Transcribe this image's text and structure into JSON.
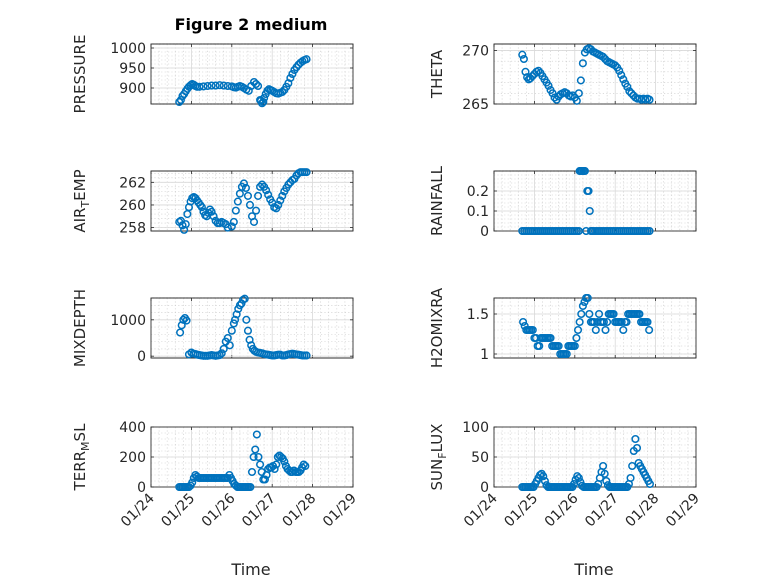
{
  "title": "Figure 2 medium",
  "xlabel": "Time",
  "colors": {
    "marker": "#0072bd",
    "axis": "#262626",
    "grid": "#d9d9d9"
  },
  "chart_data": [
    {
      "type": "scatter",
      "ylabel": "PRESSURE",
      "ylim": [
        860,
        1010
      ],
      "yticks": [
        900,
        950,
        1000
      ],
      "ytick_labels": [
        "900",
        "950",
        "1000"
      ],
      "x": [
        0.7,
        0.74,
        0.78,
        0.82,
        0.86,
        0.9,
        0.94,
        0.98,
        1.02,
        1.06,
        1.1,
        1.14,
        1.2,
        1.3,
        1.4,
        1.5,
        1.6,
        1.7,
        1.8,
        1.9,
        2.0,
        2.05,
        2.1,
        2.15,
        2.2,
        2.25,
        2.3,
        2.36,
        2.42,
        2.48,
        2.55,
        2.6,
        2.65,
        2.7,
        2.72,
        2.75,
        2.78,
        2.8,
        2.84,
        2.88,
        2.92,
        2.96,
        3.0,
        3.05,
        3.1,
        3.15,
        3.2,
        3.25,
        3.3,
        3.35,
        3.4,
        3.45,
        3.5,
        3.55,
        3.6,
        3.65,
        3.7,
        3.75,
        3.8,
        3.85
      ],
      "y": [
        865,
        870,
        880,
        885,
        892,
        898,
        903,
        907,
        910,
        908,
        905,
        903,
        903,
        904,
        905,
        906,
        906,
        907,
        906,
        905,
        904,
        902,
        901,
        903,
        905,
        903,
        900,
        896,
        893,
        905,
        915,
        910,
        905,
        870,
        868,
        862,
        865,
        875,
        885,
        893,
        897,
        895,
        893,
        890,
        887,
        886,
        888,
        890,
        895,
        903,
        912,
        925,
        935,
        945,
        952,
        958,
        963,
        967,
        970,
        972
      ]
    },
    {
      "type": "scatter",
      "ylabel": "THETA",
      "ylim": [
        265,
        270.6
      ],
      "yticks": [
        265,
        270
      ],
      "ytick_labels": [
        "265",
        "270"
      ],
      "x": [
        0.7,
        0.74,
        0.78,
        0.82,
        0.86,
        0.9,
        0.95,
        1.0,
        1.05,
        1.1,
        1.15,
        1.2,
        1.25,
        1.3,
        1.35,
        1.4,
        1.45,
        1.5,
        1.55,
        1.6,
        1.65,
        1.7,
        1.75,
        1.8,
        1.85,
        1.9,
        1.95,
        2.0,
        2.05,
        2.1,
        2.15,
        2.2,
        2.25,
        2.3,
        2.35,
        2.4,
        2.45,
        2.5,
        2.55,
        2.6,
        2.65,
        2.7,
        2.75,
        2.8,
        2.85,
        2.9,
        2.95,
        3.0,
        3.05,
        3.1,
        3.15,
        3.2,
        3.25,
        3.3,
        3.35,
        3.4,
        3.45,
        3.5,
        3.55,
        3.6,
        3.65,
        3.7,
        3.75,
        3.8,
        3.85
      ],
      "y": [
        269.6,
        269.2,
        268.0,
        267.5,
        267.3,
        267.4,
        267.6,
        267.8,
        268.0,
        268.1,
        267.9,
        267.6,
        267.3,
        267.0,
        266.7,
        266.3,
        266.0,
        265.6,
        265.4,
        265.7,
        265.9,
        266.0,
        266.1,
        266.0,
        265.8,
        265.7,
        265.8,
        265.6,
        265.3,
        266.0,
        267.2,
        268.8,
        269.8,
        270.1,
        270.2,
        270.1,
        269.9,
        269.8,
        269.7,
        269.6,
        269.5,
        269.4,
        269.2,
        269.0,
        268.9,
        268.8,
        268.7,
        268.6,
        268.4,
        268.1,
        267.7,
        267.3,
        266.9,
        266.6,
        266.2,
        266.0,
        265.8,
        265.6,
        265.5,
        265.5,
        265.4,
        265.5,
        265.4,
        265.5,
        265.4
      ]
    },
    {
      "type": "scatter",
      "ylabel": "AIR_TEMP",
      "ylim": [
        257.7,
        263.0
      ],
      "yticks": [
        258,
        260,
        262
      ],
      "ytick_labels": [
        "258",
        "260",
        "262"
      ],
      "x": [
        0.7,
        0.74,
        0.78,
        0.82,
        0.86,
        0.9,
        0.94,
        0.98,
        1.02,
        1.06,
        1.1,
        1.14,
        1.18,
        1.22,
        1.26,
        1.3,
        1.34,
        1.38,
        1.42,
        1.46,
        1.5,
        1.55,
        1.6,
        1.65,
        1.7,
        1.75,
        1.8,
        1.85,
        1.9,
        2.0,
        2.05,
        2.1,
        2.15,
        2.2,
        2.25,
        2.3,
        2.35,
        2.4,
        2.45,
        2.5,
        2.55,
        2.6,
        2.65,
        2.7,
        2.75,
        2.8,
        2.85,
        2.9,
        2.95,
        3.0,
        3.05,
        3.1,
        3.15,
        3.2,
        3.25,
        3.3,
        3.35,
        3.4,
        3.45,
        3.5,
        3.55,
        3.6,
        3.65,
        3.7,
        3.75,
        3.8,
        3.85
      ],
      "y": [
        258.5,
        258.6,
        258.2,
        257.8,
        258.3,
        259.2,
        259.8,
        260.3,
        260.6,
        260.7,
        260.6,
        260.4,
        260.2,
        260.0,
        259.8,
        259.4,
        259.1,
        259.0,
        259.3,
        259.6,
        259.4,
        259.0,
        258.6,
        258.4,
        258.4,
        258.5,
        258.4,
        258.3,
        258.0,
        258.1,
        258.5,
        259.5,
        260.3,
        261.0,
        261.6,
        261.9,
        261.5,
        260.8,
        260.0,
        259.0,
        258.5,
        259.5,
        260.8,
        261.6,
        261.8,
        261.6,
        261.3,
        260.9,
        260.5,
        260.2,
        259.8,
        259.7,
        260.0,
        260.4,
        260.8,
        261.2,
        261.5,
        261.8,
        262.0,
        262.2,
        262.3,
        262.6,
        262.8,
        262.9,
        262.9,
        262.9,
        262.9
      ]
    },
    {
      "type": "scatter",
      "ylabel": "RAINFALL",
      "ylim": [
        0,
        0.3
      ],
      "yticks": [
        0,
        0.1,
        0.2
      ],
      "ytick_labels": [
        "0",
        "0.1",
        "0.2"
      ],
      "x": [
        0.7,
        0.75,
        0.8,
        0.85,
        0.9,
        0.95,
        1.0,
        1.05,
        1.1,
        1.15,
        1.2,
        1.25,
        1.3,
        1.35,
        1.4,
        1.45,
        1.5,
        1.55,
        1.6,
        1.65,
        1.7,
        1.75,
        1.8,
        1.85,
        1.9,
        1.95,
        2.0,
        2.05,
        2.1,
        2.12,
        2.15,
        2.18,
        2.22,
        2.25,
        2.28,
        2.31,
        2.34,
        2.37,
        2.4,
        2.42,
        2.45,
        2.5,
        2.55,
        2.6,
        2.65,
        2.7,
        2.75,
        2.8,
        2.85,
        2.9,
        2.95,
        3.0,
        3.05,
        3.1,
        3.15,
        3.2,
        3.25,
        3.3,
        3.35,
        3.4,
        3.45,
        3.5,
        3.55,
        3.6,
        3.65,
        3.7,
        3.75,
        3.8,
        3.85
      ],
      "y": [
        0,
        0,
        0,
        0,
        0,
        0,
        0,
        0,
        0,
        0,
        0,
        0,
        0,
        0,
        0,
        0,
        0,
        0,
        0,
        0,
        0,
        0,
        0,
        0,
        0,
        0,
        0,
        0,
        0,
        0.3,
        0.3,
        0.3,
        0.3,
        0.3,
        0,
        0.2,
        0.2,
        0.1,
        0,
        0,
        0,
        0,
        0,
        0,
        0,
        0,
        0,
        0,
        0,
        0,
        0,
        0,
        0,
        0,
        0,
        0,
        0,
        0,
        0,
        0,
        0,
        0,
        0,
        0,
        0,
        0,
        0,
        0,
        0
      ]
    },
    {
      "type": "scatter",
      "ylabel": "MIXDEPTH",
      "ylim": [
        -50,
        1600
      ],
      "yticks": [
        0,
        1000
      ],
      "ytick_labels": [
        "0",
        "1000"
      ],
      "x": [
        0.72,
        0.76,
        0.8,
        0.84,
        0.88,
        0.94,
        1.0,
        1.05,
        1.1,
        1.15,
        1.2,
        1.25,
        1.3,
        1.35,
        1.4,
        1.45,
        1.5,
        1.55,
        1.6,
        1.65,
        1.7,
        1.75,
        1.8,
        1.85,
        1.9,
        1.95,
        2.0,
        2.05,
        2.08,
        2.12,
        2.16,
        2.2,
        2.24,
        2.28,
        2.32,
        2.36,
        2.4,
        2.44,
        2.48,
        2.52,
        2.56,
        2.6,
        2.65,
        2.7,
        2.75,
        2.8,
        2.85,
        2.9,
        2.95,
        3.0,
        3.05,
        3.1,
        3.15,
        3.2,
        3.25,
        3.3,
        3.35,
        3.4,
        3.45,
        3.5,
        3.55,
        3.6,
        3.65,
        3.7,
        3.75,
        3.8,
        3.85
      ],
      "y": [
        650,
        850,
        1000,
        1050,
        980,
        50,
        100,
        70,
        60,
        40,
        30,
        20,
        10,
        10,
        10,
        20,
        30,
        20,
        10,
        20,
        30,
        80,
        200,
        400,
        500,
        300,
        700,
        900,
        1000,
        1150,
        1300,
        1400,
        1450,
        1550,
        1580,
        1000,
        700,
        450,
        300,
        200,
        150,
        120,
        100,
        90,
        80,
        60,
        50,
        40,
        30,
        20,
        20,
        30,
        40,
        40,
        20,
        20,
        30,
        50,
        60,
        70,
        60,
        50,
        40,
        30,
        20,
        20,
        20
      ]
    },
    {
      "type": "scatter",
      "ylabel": "H2OMIXRA",
      "ylim": [
        0.95,
        1.7
      ],
      "yticks": [
        1,
        1.5
      ],
      "ytick_labels": [
        "1",
        "1.5"
      ],
      "x": [
        0.72,
        0.76,
        0.8,
        0.84,
        0.88,
        0.92,
        0.96,
        1.0,
        1.04,
        1.08,
        1.12,
        1.16,
        1.2,
        1.24,
        1.28,
        1.32,
        1.36,
        1.4,
        1.44,
        1.48,
        1.52,
        1.56,
        1.6,
        1.64,
        1.68,
        1.72,
        1.76,
        1.8,
        1.84,
        1.88,
        1.92,
        1.96,
        2.0,
        2.04,
        2.08,
        2.12,
        2.16,
        2.2,
        2.24,
        2.28,
        2.32,
        2.36,
        2.4,
        2.44,
        2.48,
        2.52,
        2.56,
        2.6,
        2.64,
        2.68,
        2.72,
        2.76,
        2.8,
        2.84,
        2.88,
        2.92,
        2.96,
        3.0,
        3.04,
        3.08,
        3.12,
        3.16,
        3.2,
        3.24,
        3.28,
        3.32,
        3.36,
        3.4,
        3.44,
        3.48,
        3.52,
        3.56,
        3.6,
        3.64,
        3.68,
        3.72,
        3.76,
        3.8,
        3.84
      ],
      "y": [
        1.4,
        1.35,
        1.3,
        1.3,
        1.3,
        1.3,
        1.3,
        1.2,
        1.2,
        1.1,
        1.1,
        1.2,
        1.2,
        1.2,
        1.2,
        1.2,
        1.2,
        1.2,
        1.1,
        1.1,
        1.1,
        1.1,
        1.1,
        1.0,
        1.0,
        1.0,
        1.0,
        1.0,
        1.1,
        1.1,
        1.1,
        1.1,
        1.1,
        1.2,
        1.3,
        1.4,
        1.5,
        1.6,
        1.65,
        1.7,
        1.7,
        1.5,
        1.4,
        1.4,
        1.4,
        1.3,
        1.4,
        1.5,
        1.4,
        1.4,
        1.4,
        1.3,
        1.4,
        1.5,
        1.5,
        1.5,
        1.5,
        1.4,
        1.4,
        1.4,
        1.4,
        1.4,
        1.3,
        1.4,
        1.4,
        1.5,
        1.5,
        1.5,
        1.5,
        1.5,
        1.5,
        1.5,
        1.5,
        1.4,
        1.4,
        1.4,
        1.4,
        1.4,
        1.3
      ]
    },
    {
      "type": "scatter",
      "ylabel": "TERR_MSL",
      "ylim": [
        0,
        400
      ],
      "yticks": [
        0,
        200,
        400
      ],
      "ytick_labels": [
        "0",
        "200",
        "400"
      ],
      "x": [
        0.7,
        0.74,
        0.78,
        0.82,
        0.86,
        0.9,
        0.94,
        0.98,
        1.02,
        1.06,
        1.1,
        1.14,
        1.18,
        1.22,
        1.26,
        1.3,
        1.34,
        1.38,
        1.42,
        1.46,
        1.5,
        1.54,
        1.58,
        1.62,
        1.66,
        1.7,
        1.74,
        1.78,
        1.82,
        1.86,
        1.9,
        1.94,
        1.98,
        2.02,
        2.06,
        2.1,
        2.14,
        2.18,
        2.22,
        2.26,
        2.3,
        2.34,
        2.38,
        2.42,
        2.46,
        2.5,
        2.54,
        2.58,
        2.62,
        2.66,
        2.7,
        2.74,
        2.78,
        2.82,
        2.86,
        2.9,
        2.94,
        2.98,
        3.02,
        3.06,
        3.1,
        3.14,
        3.18,
        3.22,
        3.26,
        3.3,
        3.34,
        3.38,
        3.42,
        3.46,
        3.5,
        3.54,
        3.58,
        3.62,
        3.66,
        3.7,
        3.74,
        3.78,
        3.82
      ],
      "y": [
        0,
        0,
        0,
        0,
        0,
        0,
        0,
        10,
        30,
        60,
        80,
        70,
        60,
        60,
        60,
        60,
        60,
        60,
        60,
        60,
        60,
        60,
        60,
        60,
        60,
        60,
        60,
        60,
        60,
        60,
        60,
        80,
        60,
        40,
        20,
        10,
        0,
        0,
        0,
        0,
        0,
        0,
        0,
        0,
        0,
        100,
        200,
        250,
        350,
        200,
        150,
        100,
        50,
        50,
        80,
        120,
        130,
        130,
        140,
        120,
        150,
        200,
        210,
        200,
        190,
        170,
        140,
        120,
        110,
        100,
        100,
        110,
        100,
        100,
        100,
        110,
        130,
        150,
        140
      ]
    },
    {
      "type": "scatter",
      "ylabel": "SUN_FLUX",
      "ylim": [
        0,
        100
      ],
      "yticks": [
        0,
        50,
        100
      ],
      "ytick_labels": [
        "0",
        "50",
        "100"
      ],
      "x": [
        0.7,
        0.74,
        0.78,
        0.82,
        0.86,
        0.9,
        0.94,
        0.98,
        1.02,
        1.06,
        1.1,
        1.14,
        1.18,
        1.22,
        1.26,
        1.3,
        1.34,
        1.38,
        1.42,
        1.46,
        1.5,
        1.54,
        1.58,
        1.62,
        1.66,
        1.7,
        1.74,
        1.78,
        1.82,
        1.86,
        1.9,
        1.94,
        1.98,
        2.02,
        2.06,
        2.1,
        2.14,
        2.18,
        2.22,
        2.26,
        2.3,
        2.34,
        2.38,
        2.42,
        2.46,
        2.5,
        2.54,
        2.58,
        2.62,
        2.66,
        2.7,
        2.74,
        2.78,
        2.82,
        2.86,
        2.9,
        2.94,
        2.98,
        3.02,
        3.06,
        3.1,
        3.14,
        3.18,
        3.22,
        3.26,
        3.3,
        3.34,
        3.38,
        3.42,
        3.46,
        3.5,
        3.54,
        3.58,
        3.62,
        3.66,
        3.7,
        3.74,
        3.78,
        3.82,
        3.86
      ],
      "y": [
        0,
        0,
        0,
        0,
        0,
        0,
        0,
        0,
        5,
        10,
        15,
        20,
        22,
        18,
        10,
        3,
        0,
        0,
        0,
        0,
        0,
        0,
        0,
        0,
        0,
        0,
        0,
        0,
        0,
        0,
        0,
        0,
        5,
        12,
        18,
        15,
        8,
        2,
        0,
        0,
        0,
        0,
        0,
        0,
        0,
        0,
        0,
        5,
        15,
        25,
        35,
        22,
        10,
        3,
        0,
        0,
        0,
        0,
        0,
        0,
        0,
        0,
        0,
        0,
        0,
        0,
        5,
        15,
        35,
        60,
        80,
        65,
        40,
        35,
        30,
        25,
        20,
        15,
        10,
        5
      ]
    }
  ],
  "x_axis": {
    "min": 0,
    "max": 5,
    "ticks": [
      0,
      1,
      2,
      3,
      4,
      5
    ],
    "tick_labels": [
      "01/24",
      "01/25",
      "01/26",
      "01/27",
      "01/28",
      "01/29"
    ]
  }
}
